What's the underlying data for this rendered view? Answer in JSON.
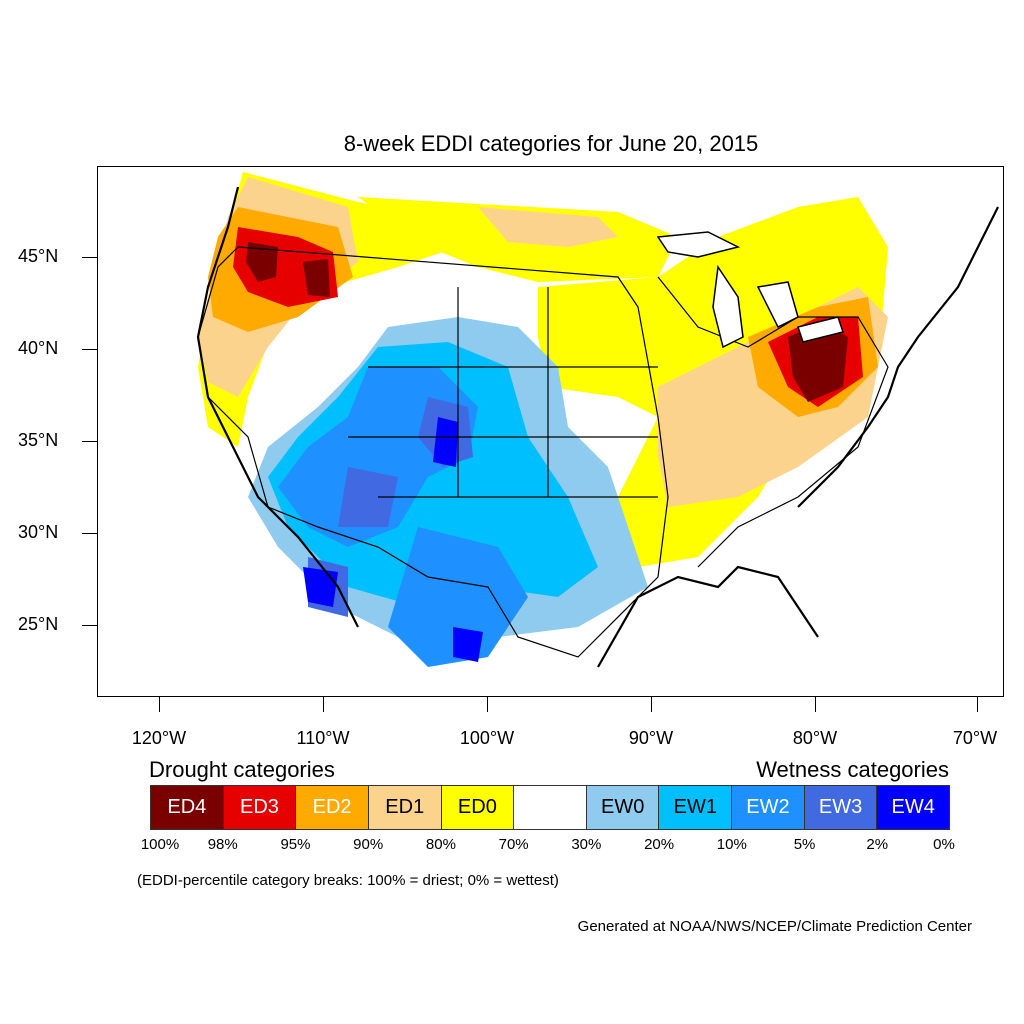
{
  "title": "8-week EDDI categories for June 20, 2015",
  "lat_labels": [
    "45°N",
    "40°N",
    "35°N",
    "30°N",
    "25°N"
  ],
  "lon_labels": [
    "120°W",
    "110°W",
    "100°W",
    "90°W",
    "80°W",
    "70°W"
  ],
  "legend": {
    "drought_heading": "Drought categories",
    "wetness_heading": "Wetness categories",
    "categories": [
      {
        "label": "ED4",
        "color": "#7a0000",
        "text_color": "#ffffff"
      },
      {
        "label": "ED3",
        "color": "#e60000",
        "text_color": "#ffffff"
      },
      {
        "label": "ED2",
        "color": "#ffaa00",
        "text_color": "#ffffff"
      },
      {
        "label": "ED1",
        "color": "#fcd38c",
        "text_color": "#000000"
      },
      {
        "label": "ED0",
        "color": "#ffff00",
        "text_color": "#000000"
      },
      {
        "label": "",
        "color": "#ffffff",
        "text_color": "#000000"
      },
      {
        "label": "EW0",
        "color": "#8ecbee",
        "text_color": "#000000"
      },
      {
        "label": "EW1",
        "color": "#00bfff",
        "text_color": "#000000"
      },
      {
        "label": "EW2",
        "color": "#1e90ff",
        "text_color": "#ffffff"
      },
      {
        "label": "EW3",
        "color": "#4169e1",
        "text_color": "#ffffff"
      },
      {
        "label": "EW4",
        "color": "#0000ff",
        "text_color": "#ffffff"
      }
    ],
    "breaks": [
      "100%",
      "98%",
      "95%",
      "90%",
      "80%",
      "70%",
      "30%",
      "20%",
      "10%",
      "5%",
      "2%",
      "0%"
    ]
  },
  "note": "(EDDI-percentile category breaks: 100% = driest; 0% = wettest)",
  "credit": "Generated at NOAA/NWS/NCEP/Climate Prediction Center"
}
